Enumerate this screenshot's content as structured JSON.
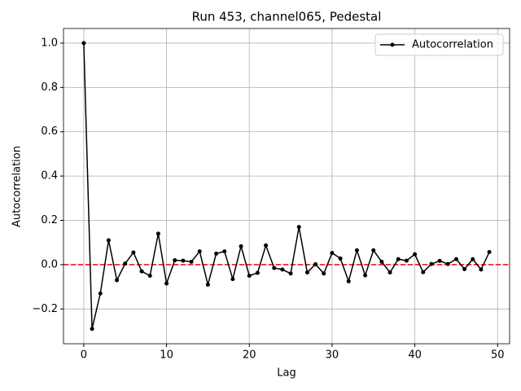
{
  "chart_data": {
    "type": "line",
    "title": "Run 453, channel065, Pedestal",
    "xlabel": "Lag",
    "ylabel": "Autocorrelation",
    "x": [
      0,
      1,
      2,
      3,
      4,
      5,
      6,
      7,
      8,
      9,
      10,
      11,
      12,
      13,
      14,
      15,
      16,
      17,
      18,
      19,
      20,
      21,
      22,
      23,
      24,
      25,
      26,
      27,
      28,
      29,
      30,
      31,
      32,
      33,
      34,
      35,
      36,
      37,
      38,
      39,
      40,
      41,
      42,
      43,
      44,
      45,
      46,
      47,
      48,
      49
    ],
    "series": [
      {
        "name": "Autocorrelation",
        "color": "#000000",
        "values": [
          1.0,
          -0.29,
          -0.13,
          0.11,
          -0.07,
          0.005,
          0.055,
          -0.03,
          -0.05,
          0.14,
          -0.085,
          0.02,
          0.018,
          0.013,
          0.06,
          -0.09,
          0.05,
          0.06,
          -0.065,
          0.083,
          -0.05,
          -0.037,
          0.087,
          -0.015,
          -0.022,
          -0.04,
          0.17,
          -0.035,
          0.002,
          -0.04,
          0.053,
          0.028,
          -0.075,
          0.065,
          -0.048,
          0.065,
          0.013,
          -0.035,
          0.025,
          0.018,
          0.047,
          -0.034,
          0.003,
          0.017,
          0.003,
          0.025,
          -0.02,
          0.025,
          -0.022,
          0.057
        ]
      }
    ],
    "hline": {
      "value": 0,
      "color": "#ff0000"
    },
    "xlim": [
      -2.45,
      51.45
    ],
    "ylim": [
      -0.357,
      1.066
    ],
    "xticks": [
      0,
      10,
      20,
      30,
      40,
      50
    ],
    "yticks": [
      {
        "value": -0.2,
        "label": "−0.2"
      },
      {
        "value": 0,
        "label": "0.0"
      },
      0.2,
      0.4,
      0.6,
      0.8,
      {
        "value": 1,
        "label": "1.0"
      }
    ],
    "grid": true,
    "legend": "upper right"
  }
}
